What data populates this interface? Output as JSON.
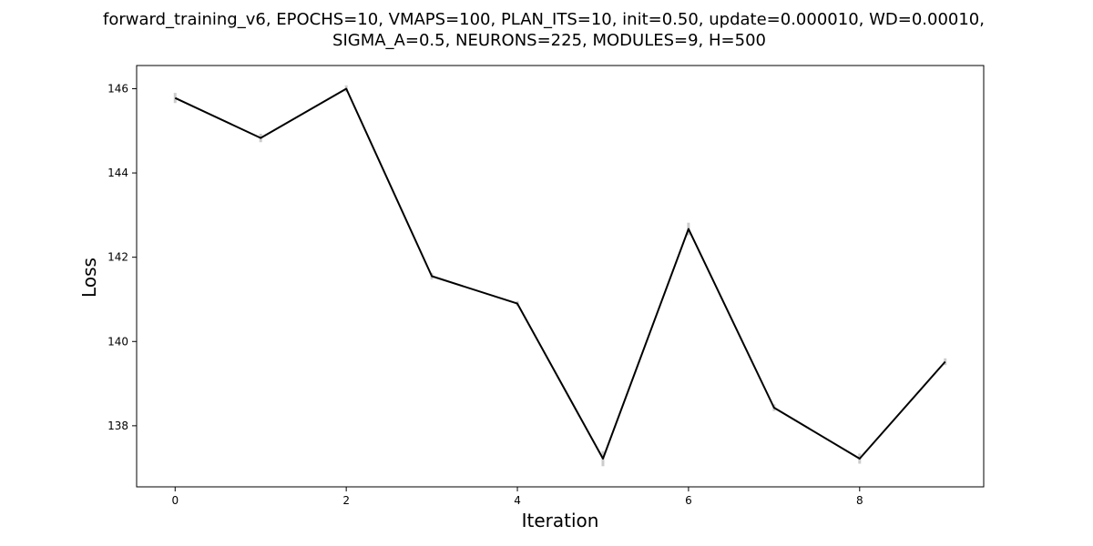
{
  "chart_data": {
    "type": "line",
    "title_lines": [
      "forward_training_v6, EPOCHS=10, VMAPS=100, PLAN_ITS=10, init=0.50, update=0.000010, WD=0.00010,",
      "SIGMA_A=0.5, NEURONS=225, MODULES=9, H=500"
    ],
    "xlabel": "Iteration",
    "ylabel": "Loss",
    "x": [
      0,
      1,
      2,
      3,
      4,
      5,
      6,
      7,
      8,
      9
    ],
    "y": [
      145.78,
      144.83,
      146.0,
      141.55,
      140.9,
      137.22,
      142.67,
      138.43,
      137.22,
      139.52
    ],
    "error": [
      0.12,
      0.1,
      0.08,
      0.08,
      0.06,
      0.18,
      0.15,
      0.08,
      0.12,
      0.08
    ],
    "xlim": [
      -0.45,
      9.45
    ],
    "ylim": [
      136.55,
      146.55
    ],
    "xticks": [
      0,
      2,
      4,
      6,
      8
    ],
    "yticks": [
      138,
      140,
      142,
      144,
      146
    ],
    "line_color": "#000000",
    "error_color": "#cccccc",
    "grid": false
  }
}
